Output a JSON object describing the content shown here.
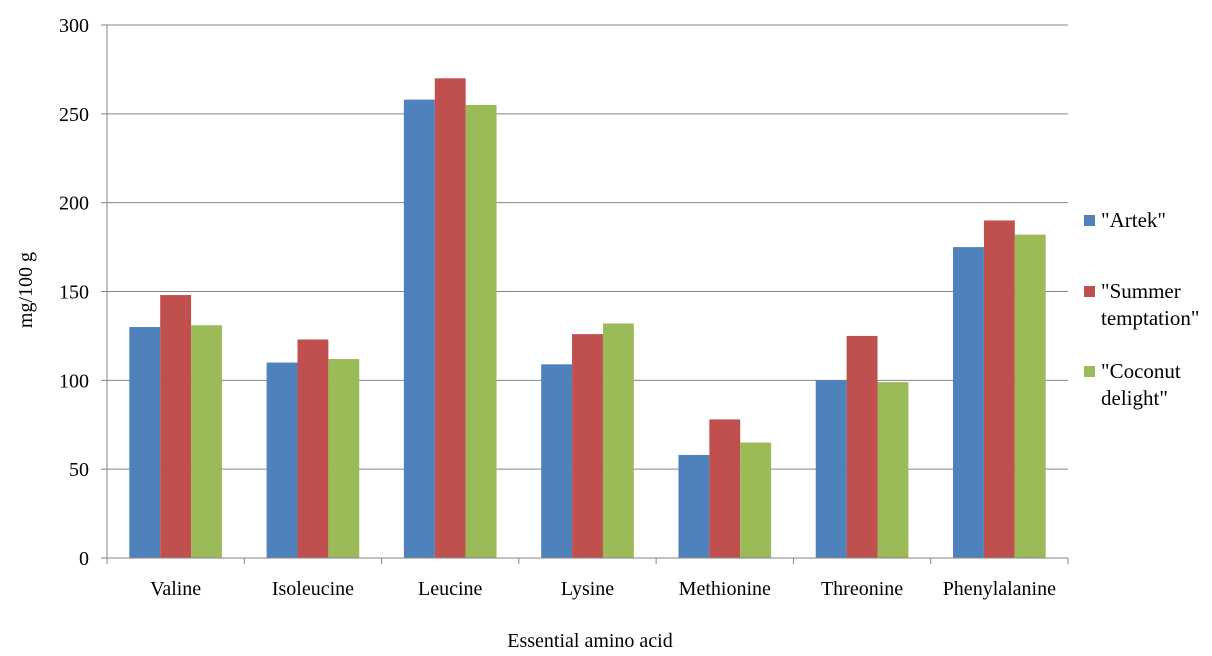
{
  "chart_data": {
    "type": "bar",
    "title": "",
    "xlabel": "Essential amino acid",
    "ylabel": "mg/100 g",
    "ylim": [
      0,
      300
    ],
    "yticks": [
      0,
      50,
      100,
      150,
      200,
      250,
      300
    ],
    "grid": true,
    "legend_position": "right",
    "categories": [
      "Valine",
      "Isoleucine",
      "Leucine",
      "Lysine",
      "Methionine",
      "Threonine",
      "Phenylalanine"
    ],
    "series": [
      {
        "name": "\"Artek\"",
        "legend_lines": [
          "\"Artek\""
        ],
        "color": "#4F81BD",
        "values": [
          130,
          110,
          258,
          109,
          58,
          100,
          175
        ]
      },
      {
        "name": "\"Summer temptation\"",
        "legend_lines": [
          "\"Summer",
          "temptation\""
        ],
        "color": "#C0504D",
        "values": [
          148,
          123,
          270,
          126,
          78,
          125,
          190
        ]
      },
      {
        "name": "\"Coconut delight\"",
        "legend_lines": [
          "\"Coconut",
          "delight\""
        ],
        "color": "#9BBB59",
        "values": [
          131,
          112,
          255,
          132,
          65,
          99,
          182
        ]
      }
    ]
  }
}
